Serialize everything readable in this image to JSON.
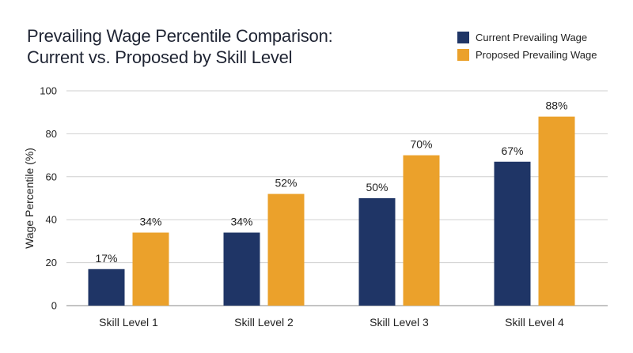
{
  "chart_data": {
    "type": "bar",
    "title_lines": [
      "Prevailing Wage Percentile Comparison:",
      "Current vs. Proposed by Skill Level"
    ],
    "categories": [
      "Skill Level 1",
      "Skill Level 2",
      "Skill Level 3",
      "Skill Level 4"
    ],
    "series": [
      {
        "name": "Current Prevailing Wage",
        "values": [
          17,
          34,
          50,
          67
        ],
        "color": "#1f3566"
      },
      {
        "name": "Proposed Prevailing Wage",
        "values": [
          34,
          52,
          70,
          88
        ],
        "color": "#eba12b"
      }
    ],
    "data_label_suffix": "%",
    "xlabel": "",
    "ylabel": "Wage Percentile (%)",
    "ylim": [
      0,
      100
    ],
    "yticks": [
      0,
      20,
      40,
      60,
      80,
      100
    ],
    "grid": true,
    "legend_position": "top-right"
  }
}
